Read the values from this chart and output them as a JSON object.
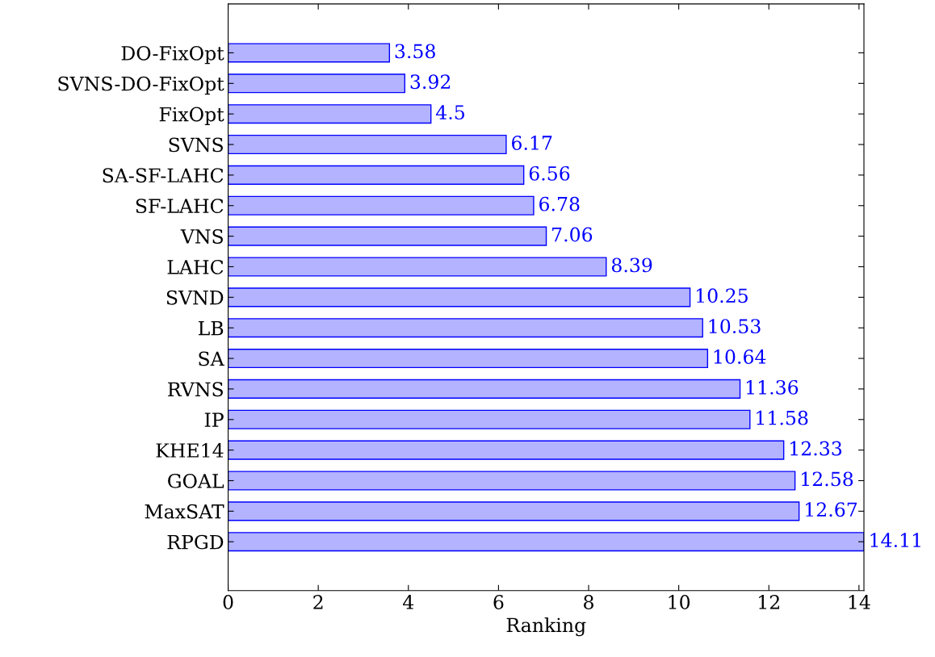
{
  "chart_data": {
    "type": "bar",
    "orientation": "horizontal",
    "xlabel": "Ranking",
    "categories": [
      "DO-FixOpt",
      "SVNS-DO-FixOpt",
      "FixOpt",
      "SVNS",
      "SA-SF-LAHC",
      "SF-LAHC",
      "VNS",
      "LAHC",
      "SVND",
      "LB",
      "SA",
      "RVNS",
      "IP",
      "KHE14",
      "GOAL",
      "MaxSAT",
      "RPGD"
    ],
    "values": [
      3.58,
      3.92,
      4.5,
      6.17,
      6.56,
      6.78,
      7.06,
      8.39,
      10.25,
      10.53,
      10.64,
      11.36,
      11.58,
      12.33,
      12.58,
      12.67,
      14.11
    ],
    "color": "#b3b3ff",
    "data_labels": true,
    "grid": false,
    "legend": false,
    "xlim": [
      0,
      14.11
    ],
    "xticks": [
      0,
      2,
      4,
      6,
      8,
      10,
      12,
      14
    ]
  }
}
